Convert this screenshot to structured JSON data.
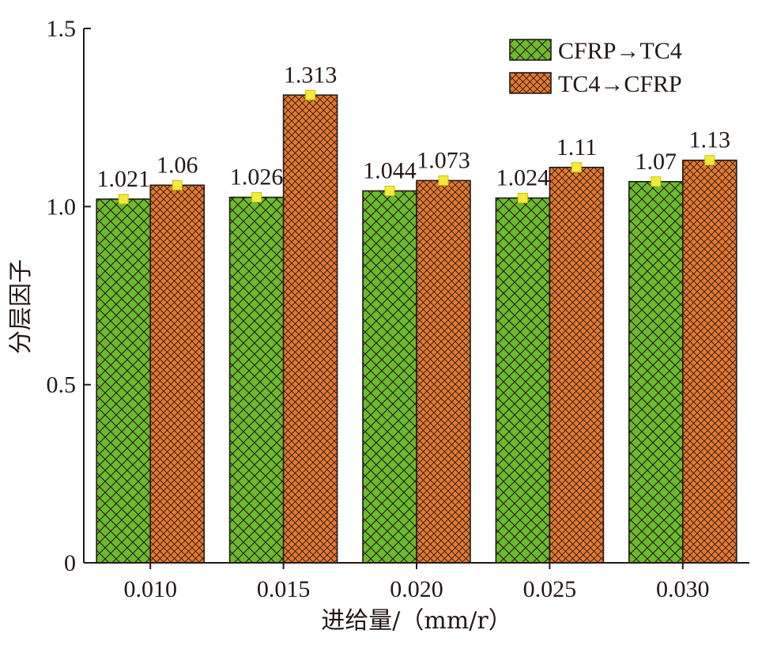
{
  "chart_data": {
    "type": "bar",
    "xlabel": "进给量/（mm/r）",
    "ylabel": "分层因子",
    "ylim": [
      0,
      1.5
    ],
    "yticks": [
      "0",
      "0.5",
      "1.0",
      "1.5"
    ],
    "categories": [
      "0.010",
      "0.015",
      "0.020",
      "0.025",
      "0.030"
    ],
    "series": [
      {
        "name": "CFRP→TC4",
        "values": [
          1.021,
          1.026,
          1.044,
          1.024,
          1.07
        ],
        "labels": [
          "1.021",
          "1.026",
          "1.044",
          "1.024",
          "1.07"
        ],
        "color": "#6cbb2c",
        "pattern": "crosshatch"
      },
      {
        "name": "TC4→CFRP",
        "values": [
          1.06,
          1.313,
          1.073,
          1.11,
          1.13
        ],
        "labels": [
          "1.06",
          "1.313",
          "1.073",
          "1.11",
          "1.13"
        ],
        "color": "#e5792e",
        "pattern": "crosshatch"
      }
    ],
    "marker_color": "#f3ea3c",
    "legend_position": "top-right",
    "grid": false
  }
}
